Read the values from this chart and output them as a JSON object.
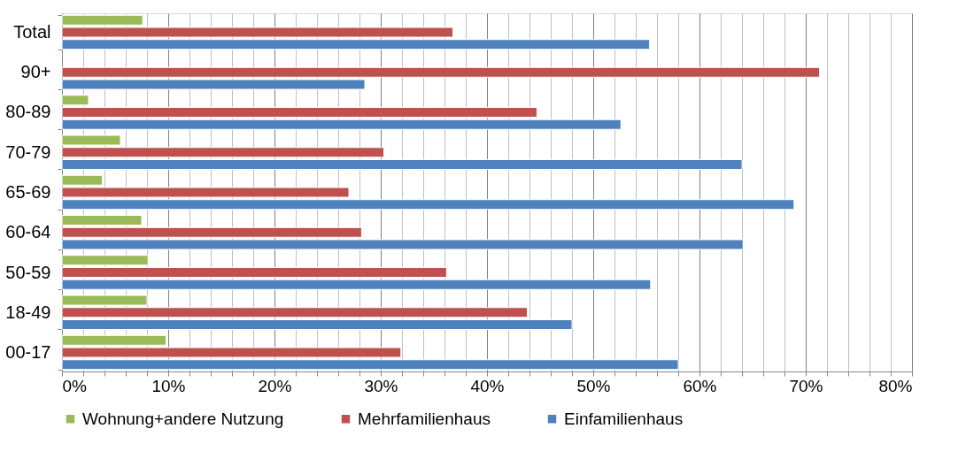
{
  "chart_data": {
    "type": "bar",
    "orientation": "horizontal",
    "categories": [
      "Total",
      "90+",
      "80-89",
      "70-79",
      "65-69",
      "60-64",
      "50-59",
      "18-49",
      "00-17"
    ],
    "series": [
      {
        "name": "Wohnung+andere Nutzung",
        "color": "#9bbb59",
        "values": [
          7.6,
          null,
          2.5,
          5.5,
          3.8,
          7.5,
          8.1,
          8.0,
          9.8
        ]
      },
      {
        "name": "Mehrfamilienhaus",
        "color": "#c0504d",
        "values": [
          36.8,
          71.3,
          44.7,
          30.3,
          27.0,
          28.2,
          36.2,
          43.8,
          31.9
        ]
      },
      {
        "name": "Einfamilienhaus",
        "color": "#4f81bd",
        "values": [
          55.3,
          28.5,
          52.6,
          64.0,
          68.9,
          64.1,
          55.4,
          48.0,
          58.0
        ]
      }
    ],
    "xlim": [
      0,
      80
    ],
    "xticks": [
      {
        "value": 0,
        "label": "0%"
      },
      {
        "value": 2,
        "label": null
      },
      {
        "value": 4,
        "label": null
      },
      {
        "value": 6,
        "label": null
      },
      {
        "value": 8,
        "label": null
      },
      {
        "value": 10,
        "label": "10%"
      },
      {
        "value": 12,
        "label": null
      },
      {
        "value": 14,
        "label": null
      },
      {
        "value": 16,
        "label": null
      },
      {
        "value": 18,
        "label": null
      },
      {
        "value": 20,
        "label": "20%"
      },
      {
        "value": 22,
        "label": null
      },
      {
        "value": 24,
        "label": null
      },
      {
        "value": 26,
        "label": null
      },
      {
        "value": 28,
        "label": null
      },
      {
        "value": 30,
        "label": "30%"
      },
      {
        "value": 32,
        "label": null
      },
      {
        "value": 34,
        "label": null
      },
      {
        "value": 36,
        "label": null
      },
      {
        "value": 38,
        "label": null
      },
      {
        "value": 40,
        "label": "40%"
      },
      {
        "value": 42,
        "label": null
      },
      {
        "value": 44,
        "label": null
      },
      {
        "value": 46,
        "label": null
      },
      {
        "value": 48,
        "label": null
      },
      {
        "value": 50,
        "label": "50%"
      },
      {
        "value": 52,
        "label": null
      },
      {
        "value": 54,
        "label": null
      },
      {
        "value": 56,
        "label": null
      },
      {
        "value": 58,
        "label": null
      },
      {
        "value": 60,
        "label": "60%"
      },
      {
        "value": 62,
        "label": null
      },
      {
        "value": 64,
        "label": null
      },
      {
        "value": 66,
        "label": null
      },
      {
        "value": 68,
        "label": null
      },
      {
        "value": 70,
        "label": "70%"
      },
      {
        "value": 72,
        "label": null
      },
      {
        "value": 74,
        "label": null
      },
      {
        "value": 76,
        "label": null
      },
      {
        "value": 78,
        "label": null
      },
      {
        "value": 80,
        "label": "80%"
      }
    ],
    "grid": "x",
    "legend": "bottom"
  }
}
